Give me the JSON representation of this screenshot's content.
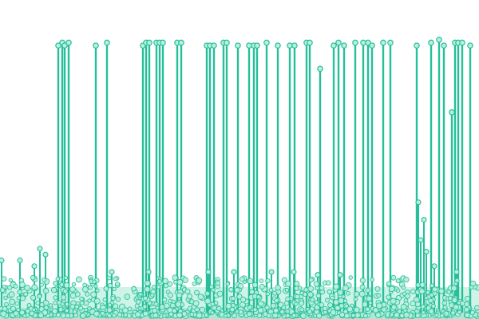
{
  "chart_data": {
    "type": "scatter",
    "title": "",
    "xlabel": "",
    "ylabel": "",
    "x_range": [
      0,
      600
    ],
    "ylim": [
      0,
      1
    ],
    "grid": false,
    "legend": "none",
    "color": "#25BF9A",
    "marker_fill": "#B9EFDD",
    "base_color": "#C7F1E3",
    "tall_stems_x": [
      73,
      78,
      81,
      86,
      120,
      134,
      179,
      183,
      187,
      196,
      200,
      204,
      222,
      227,
      259,
      263,
      268,
      280,
      284,
      298,
      312,
      318,
      322,
      334,
      348,
      363,
      369,
      384,
      388,
      401,
      418,
      424,
      431,
      445,
      455,
      461,
      466,
      480,
      489,
      522,
      540,
      550,
      556,
      566,
      570,
      574,
      579,
      589
    ],
    "tall_stems_y": [
      0.92,
      0.93,
      0.92,
      0.93,
      0.92,
      0.93,
      0.92,
      0.93,
      0.93,
      0.93,
      0.93,
      0.93,
      0.93,
      0.93,
      0.92,
      0.92,
      0.92,
      0.93,
      0.93,
      0.92,
      0.92,
      0.92,
      0.92,
      0.93,
      0.92,
      0.92,
      0.92,
      0.93,
      0.93,
      0.84,
      0.92,
      0.93,
      0.92,
      0.93,
      0.93,
      0.93,
      0.92,
      0.93,
      0.93,
      0.92,
      0.93,
      0.94,
      0.92,
      0.69,
      0.93,
      0.93,
      0.93,
      0.92
    ],
    "short_stems_x": [
      2,
      25,
      43,
      50,
      57,
      140,
      186,
      261,
      293,
      340,
      368,
      398,
      426,
      524,
      527,
      531,
      534,
      544,
      572
    ],
    "short_stems_y": [
      0.18,
      0.18,
      0.16,
      0.22,
      0.2,
      0.14,
      0.14,
      0.14,
      0.14,
      0.14,
      0.14,
      0.13,
      0.13,
      0.38,
      0.25,
      0.32,
      0.21,
      0.16,
      0.14
    ],
    "noise_count": 900
  }
}
